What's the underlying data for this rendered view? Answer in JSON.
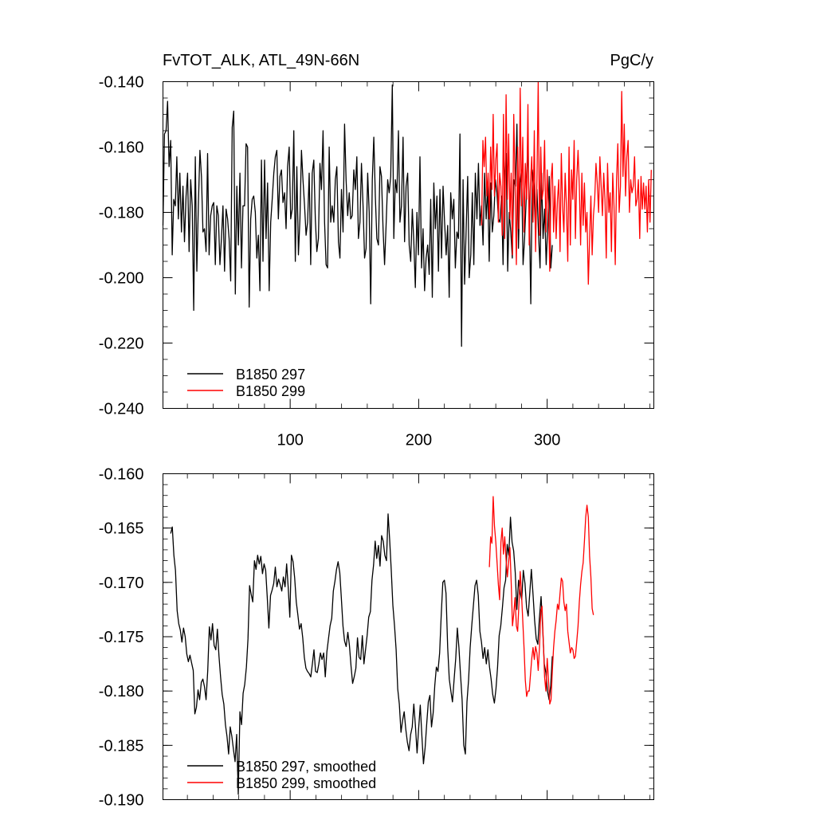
{
  "chart_data": [
    {
      "type": "line",
      "title_left": "FvTOT_ALK, ATL_49N-66N",
      "title_right": "PgC/y",
      "xlim": [
        1,
        383
      ],
      "ylim": [
        -0.24,
        -0.14
      ],
      "x_ticks": [
        100,
        200,
        300
      ],
      "x_tick_labels": [
        "100",
        "200",
        "300"
      ],
      "y_ticks": [
        -0.14,
        -0.16,
        -0.18,
        -0.2,
        -0.22,
        -0.24
      ],
      "y_tick_labels": [
        "-0.140",
        "-0.160",
        "-0.180",
        "-0.200",
        "-0.220",
        "-0.240"
      ],
      "legend": "bottom-left",
      "series": [
        {
          "name": "B1850 297",
          "color": "#000000",
          "x_start": 1,
          "values": [
            -0.184,
            -0.156,
            -0.155,
            -0.146,
            -0.166,
            -0.158,
            -0.193,
            -0.176,
            -0.178,
            -0.163,
            -0.182,
            -0.168,
            -0.186,
            -0.172,
            -0.189,
            -0.175,
            -0.168,
            -0.192,
            -0.17,
            -0.178,
            -0.21,
            -0.163,
            -0.198,
            -0.178,
            -0.161,
            -0.169,
            -0.186,
            -0.185,
            -0.192,
            -0.162,
            -0.193,
            -0.181,
            -0.178,
            -0.177,
            -0.196,
            -0.178,
            -0.181,
            -0.196,
            -0.188,
            -0.178,
            -0.198,
            -0.179,
            -0.182,
            -0.188,
            -0.201,
            -0.154,
            -0.149,
            -0.205,
            -0.172,
            -0.19,
            -0.168,
            -0.197,
            -0.178,
            -0.178,
            -0.159,
            -0.16,
            -0.209,
            -0.182,
            -0.176,
            -0.175,
            -0.18,
            -0.194,
            -0.187,
            -0.204,
            -0.164,
            -0.195,
            -0.164,
            -0.188,
            -0.171,
            -0.204,
            -0.183,
            -0.176,
            -0.168,
            -0.163,
            -0.161,
            -0.182,
            -0.169,
            -0.167,
            -0.177,
            -0.174,
            -0.185,
            -0.166,
            -0.16,
            -0.182,
            -0.179,
            -0.155,
            -0.195,
            -0.166,
            -0.193,
            -0.182,
            -0.161,
            -0.17,
            -0.178,
            -0.187,
            -0.183,
            -0.168,
            -0.196,
            -0.168,
            -0.164,
            -0.182,
            -0.192,
            -0.188,
            -0.165,
            -0.173,
            -0.155,
            -0.183,
            -0.196,
            -0.197,
            -0.16,
            -0.183,
            -0.178,
            -0.183,
            -0.17,
            -0.166,
            -0.189,
            -0.194,
            -0.173,
            -0.186,
            -0.153,
            -0.17,
            -0.181,
            -0.174,
            -0.182,
            -0.181,
            -0.167,
            -0.173,
            -0.163,
            -0.188,
            -0.183,
            -0.165,
            -0.178,
            -0.194,
            -0.191,
            -0.168,
            -0.18,
            -0.208,
            -0.17,
            -0.157,
            -0.175,
            -0.188,
            -0.19,
            -0.166,
            -0.169,
            -0.185,
            -0.196,
            -0.184,
            -0.17,
            -0.174,
            -0.169,
            -0.141,
            -0.188,
            -0.17,
            -0.174,
            -0.155,
            -0.183,
            -0.178,
            -0.157,
            -0.189,
            -0.172,
            -0.168,
            -0.19,
            -0.195,
            -0.179,
            -0.189,
            -0.203,
            -0.18,
            -0.193,
            -0.163,
            -0.197,
            -0.185,
            -0.204,
            -0.194,
            -0.19,
            -0.199,
            -0.176,
            -0.206,
            -0.171,
            -0.185,
            -0.175,
            -0.198,
            -0.173,
            -0.194,
            -0.172,
            -0.183,
            -0.193,
            -0.184,
            -0.206,
            -0.174,
            -0.182,
            -0.176,
            -0.197,
            -0.186,
            -0.188,
            -0.156,
            -0.221,
            -0.17,
            -0.202,
            -0.185,
            -0.169,
            -0.2,
            -0.193,
            -0.174,
            -0.196,
            -0.168,
            -0.182,
            -0.165,
            -0.184,
            -0.178,
            -0.19,
            -0.168,
            -0.182,
            -0.172,
            -0.195,
            -0.171,
            -0.186,
            -0.181,
            -0.17,
            -0.174,
            -0.182,
            -0.183,
            -0.175,
            -0.196,
            -0.169,
            -0.162,
            -0.198,
            -0.18,
            -0.186,
            -0.194,
            -0.17,
            -0.172,
            -0.153,
            -0.191,
            -0.171,
            -0.167,
            -0.196,
            -0.188,
            -0.176,
            -0.159,
            -0.178,
            -0.208,
            -0.167,
            -0.172,
            -0.185,
            -0.173,
            -0.186,
            -0.197,
            -0.168,
            -0.188,
            -0.179,
            -0.196,
            -0.184,
            -0.169,
            -0.197,
            -0.19
          ],
          "x_end": 304
        },
        {
          "name": "B1850 299",
          "color": "#ff0000",
          "x_start": 249,
          "values": [
            -0.184,
            -0.158,
            -0.166,
            -0.157,
            -0.175,
            -0.168,
            -0.182,
            -0.16,
            -0.173,
            -0.15,
            -0.175,
            -0.164,
            -0.159,
            -0.183,
            -0.168,
            -0.172,
            -0.187,
            -0.15,
            -0.188,
            -0.144,
            -0.176,
            -0.156,
            -0.182,
            -0.168,
            -0.193,
            -0.15,
            -0.17,
            -0.196,
            -0.16,
            -0.185,
            -0.142,
            -0.178,
            -0.157,
            -0.186,
            -0.165,
            -0.176,
            -0.147,
            -0.19,
            -0.171,
            -0.163,
            -0.183,
            -0.155,
            -0.192,
            -0.17,
            -0.14,
            -0.187,
            -0.16,
            -0.176,
            -0.173,
            -0.158,
            -0.186,
            -0.167,
            -0.18,
            -0.198,
            -0.17,
            -0.165,
            -0.186,
            -0.172,
            -0.188,
            -0.176,
            -0.17,
            -0.192,
            -0.162,
            -0.178,
            -0.186,
            -0.168,
            -0.178,
            -0.195,
            -0.16,
            -0.19,
            -0.167,
            -0.176,
            -0.158,
            -0.188,
            -0.17,
            -0.161,
            -0.172,
            -0.19,
            -0.168,
            -0.184,
            -0.171,
            -0.186,
            -0.18,
            -0.202,
            -0.188,
            -0.175,
            -0.193,
            -0.181,
            -0.176,
            -0.165,
            -0.171,
            -0.18,
            -0.163,
            -0.172,
            -0.181,
            -0.168,
            -0.176,
            -0.194,
            -0.165,
            -0.18,
            -0.174,
            -0.192,
            -0.168,
            -0.178,
            -0.196,
            -0.17,
            -0.159,
            -0.18,
            -0.172,
            -0.143,
            -0.169,
            -0.153,
            -0.175,
            -0.163,
            -0.158,
            -0.18,
            -0.17,
            -0.174,
            -0.172,
            -0.163,
            -0.178,
            -0.176,
            -0.17,
            -0.188,
            -0.169,
            -0.179,
            -0.171,
            -0.179,
            -0.172,
            -0.186,
            -0.17,
            -0.183,
            -0.167
          ]
        }
      ]
    },
    {
      "type": "line",
      "xlim": [
        1,
        383
      ],
      "ylim": [
        -0.19,
        -0.16
      ],
      "x_ticks": [
        100,
        200,
        300
      ],
      "y_ticks": [
        -0.16,
        -0.165,
        -0.17,
        -0.175,
        -0.18,
        -0.185,
        -0.19
      ],
      "y_tick_labels": [
        "-0.160",
        "-0.165",
        "-0.170",
        "-0.175",
        "-0.180",
        "-0.185",
        "-0.190"
      ],
      "legend": "bottom-left",
      "series": [
        {
          "name": "B1850 297, smoothed",
          "color": "#000000",
          "x_start": 7,
          "values": [
            -0.1655,
            -0.1649,
            -0.1675,
            -0.1689,
            -0.1726,
            -0.1738,
            -0.1744,
            -0.1755,
            -0.1742,
            -0.175,
            -0.1766,
            -0.1773,
            -0.1767,
            -0.1774,
            -0.1781,
            -0.1821,
            -0.1815,
            -0.1799,
            -0.1808,
            -0.1792,
            -0.1789,
            -0.1796,
            -0.1808,
            -0.1781,
            -0.1741,
            -0.1753,
            -0.1738,
            -0.1758,
            -0.1762,
            -0.1743,
            -0.1768,
            -0.1787,
            -0.1803,
            -0.1812,
            -0.1831,
            -0.1842,
            -0.1858,
            -0.1833,
            -0.1842,
            -0.1854,
            -0.1865,
            -0.184,
            -0.1895,
            -0.1819,
            -0.1831,
            -0.1802,
            -0.1794,
            -0.1778,
            -0.1752,
            -0.1703,
            -0.1711,
            -0.1718,
            -0.168,
            -0.1688,
            -0.1675,
            -0.1683,
            -0.1676,
            -0.1692,
            -0.1683,
            -0.1689,
            -0.1714,
            -0.1742,
            -0.1712,
            -0.1707,
            -0.1701,
            -0.1686,
            -0.1704,
            -0.1697,
            -0.1702,
            -0.1708,
            -0.1695,
            -0.1704,
            -0.1683,
            -0.1705,
            -0.1732,
            -0.1675,
            -0.1681,
            -0.1696,
            -0.1718,
            -0.173,
            -0.1743,
            -0.1738,
            -0.1751,
            -0.1769,
            -0.1779,
            -0.1782,
            -0.1784,
            -0.1787,
            -0.1775,
            -0.1762,
            -0.1782,
            -0.1783,
            -0.1775,
            -0.1765,
            -0.1771,
            -0.1765,
            -0.1787,
            -0.1764,
            -0.1752,
            -0.174,
            -0.1733,
            -0.1708,
            -0.1699,
            -0.1688,
            -0.1681,
            -0.1691,
            -0.1715,
            -0.174,
            -0.1754,
            -0.1759,
            -0.1746,
            -0.1758,
            -0.1777,
            -0.1793,
            -0.1787,
            -0.1779,
            -0.1751,
            -0.1769,
            -0.1771,
            -0.1749,
            -0.1775,
            -0.1762,
            -0.1749,
            -0.1732,
            -0.1727,
            -0.1698,
            -0.1684,
            -0.1662,
            -0.1678,
            -0.1666,
            -0.1685,
            -0.1657,
            -0.1662,
            -0.1675,
            -0.168,
            -0.1637,
            -0.1661,
            -0.1689,
            -0.1721,
            -0.174,
            -0.1762,
            -0.1798,
            -0.1812,
            -0.1838,
            -0.1827,
            -0.1819,
            -0.1835,
            -0.1847,
            -0.1855,
            -0.184,
            -0.1833,
            -0.1812,
            -0.1832,
            -0.1857,
            -0.1834,
            -0.1813,
            -0.1841,
            -0.1867,
            -0.1852,
            -0.183,
            -0.181,
            -0.1804,
            -0.1833,
            -0.182,
            -0.1795,
            -0.1778,
            -0.1782,
            -0.1765,
            -0.173,
            -0.17,
            -0.1698,
            -0.171,
            -0.176,
            -0.1789,
            -0.18,
            -0.181,
            -0.179,
            -0.177,
            -0.1742,
            -0.176,
            -0.1785,
            -0.1808,
            -0.185,
            -0.1858,
            -0.181,
            -0.179,
            -0.176,
            -0.1739,
            -0.1721,
            -0.1703,
            -0.1698,
            -0.1712,
            -0.1745,
            -0.1755,
            -0.177,
            -0.176,
            -0.1775,
            -0.1762,
            -0.1778,
            -0.1789,
            -0.1803,
            -0.1811,
            -0.1798,
            -0.1778,
            -0.1749,
            -0.174,
            -0.1723,
            -0.1705,
            -0.1698,
            -0.1665,
            -0.1675,
            -0.164,
            -0.1663,
            -0.1671,
            -0.1691,
            -0.1725,
            -0.1698,
            -0.1709,
            -0.1716,
            -0.1689,
            -0.1701,
            -0.1723,
            -0.1731,
            -0.171,
            -0.1688,
            -0.1711,
            -0.1735,
            -0.1752,
            -0.1757,
            -0.1733,
            -0.1713,
            -0.1742,
            -0.1775,
            -0.1783,
            -0.18,
            -0.1808,
            -0.1795,
            -0.1768
          ],
          "x_end": 304
        },
        {
          "name": "B1850 299, smoothed",
          "color": "#ff0000",
          "x_start": 255,
          "values": [
            -0.1686,
            -0.1658,
            -0.1664,
            -0.1621,
            -0.1648,
            -0.1663,
            -0.1682,
            -0.1702,
            -0.1716,
            -0.1663,
            -0.165,
            -0.1674,
            -0.1658,
            -0.1679,
            -0.1695,
            -0.1681,
            -0.1668,
            -0.17,
            -0.174,
            -0.1729,
            -0.1714,
            -0.174,
            -0.1745,
            -0.172,
            -0.169,
            -0.171,
            -0.1735,
            -0.176,
            -0.179,
            -0.1805,
            -0.18,
            -0.18,
            -0.1785,
            -0.177,
            -0.176,
            -0.1771,
            -0.1759,
            -0.1765,
            -0.1781,
            -0.176,
            -0.1727,
            -0.1722,
            -0.1754,
            -0.1787,
            -0.18,
            -0.177,
            -0.179,
            -0.1812,
            -0.1808,
            -0.1782,
            -0.176,
            -0.1745,
            -0.1735,
            -0.172,
            -0.1725,
            -0.171,
            -0.1696,
            -0.1699,
            -0.1718,
            -0.1726,
            -0.172,
            -0.1745,
            -0.1755,
            -0.1765,
            -0.176,
            -0.1762,
            -0.177,
            -0.1768,
            -0.1755,
            -0.174,
            -0.1718,
            -0.1702,
            -0.169,
            -0.1682,
            -0.1662,
            -0.164,
            -0.1629,
            -0.164,
            -0.1676,
            -0.1695,
            -0.1724,
            -0.173
          ]
        }
      ]
    }
  ]
}
